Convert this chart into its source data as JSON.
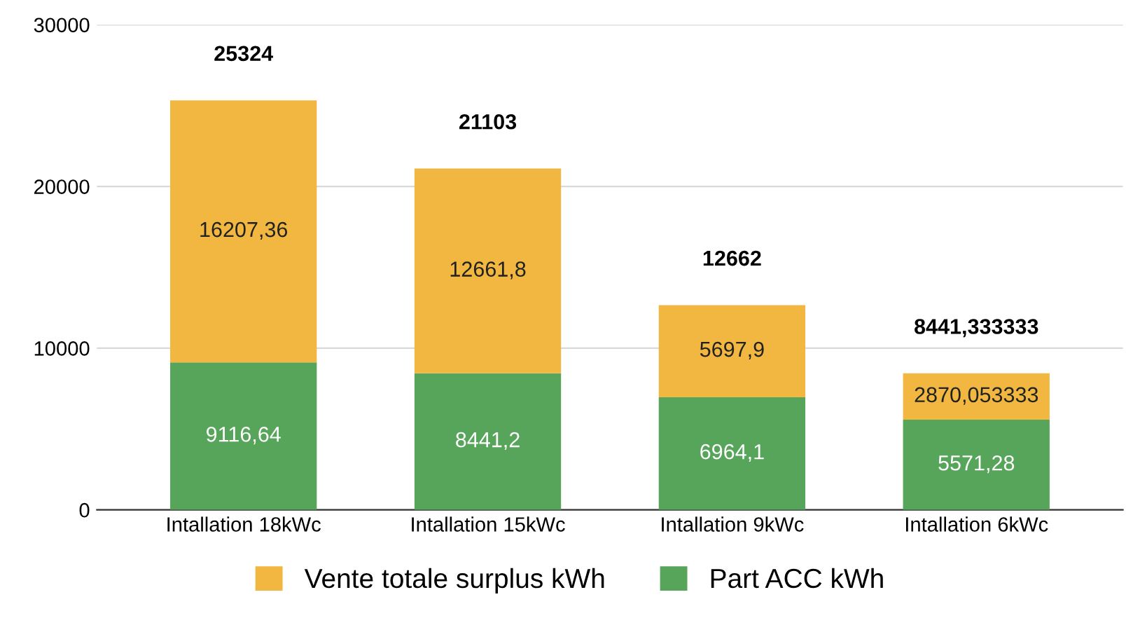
{
  "chart_data": {
    "type": "bar",
    "stacked": true,
    "categories": [
      "Intallation 18kWc",
      "Intallation 15kWc",
      "Intallation 9kWc",
      "Intallation 6kWc"
    ],
    "series": [
      {
        "name": "Part ACC kWh",
        "color": "#57a55a",
        "values": [
          9116.64,
          8441.2,
          6964.1,
          5571.28
        ],
        "value_labels": [
          "9116,64",
          "8441,2",
          "6964,1",
          "5571,28"
        ]
      },
      {
        "name": "Vente totale surplus kWh",
        "color": "#f1b740",
        "values": [
          16207.36,
          12661.8,
          5697.9,
          2870.053333
        ],
        "value_labels": [
          "16207,36",
          "12661,8",
          "5697,9",
          "2870,053333"
        ]
      }
    ],
    "totals": [
      "25324",
      "21103",
      "12662",
      "8441,333333"
    ],
    "ylim": [
      0,
      30000
    ],
    "yticks": [
      0,
      10000,
      20000,
      30000
    ],
    "grid": "y",
    "legend": "bottom"
  }
}
